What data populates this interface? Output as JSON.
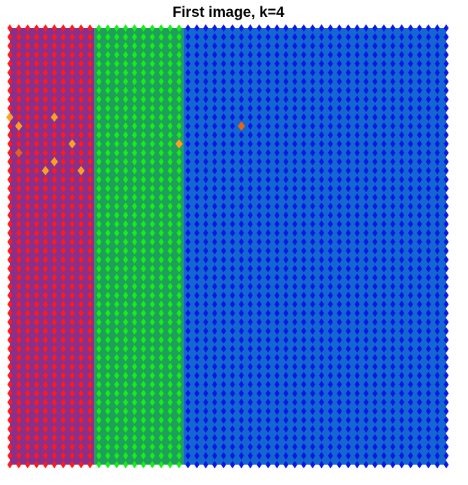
{
  "chart_data": {
    "type": "scatter",
    "title": "First image, k=4",
    "xlabel": "",
    "ylabel": "",
    "grid": false,
    "legend": "none",
    "grid_cols": 50,
    "grid_rows": 50,
    "regions": [
      {
        "cluster": "red",
        "col_start": 0,
        "col_end": 9,
        "background": "#8B2F8A",
        "marker": "#FF1A1A"
      },
      {
        "cluster": "green",
        "col_start": 10,
        "col_end": 19,
        "background": "#1FA05A",
        "marker": "#14F014"
      },
      {
        "cluster": "blue",
        "col_start": 20,
        "col_end": 49,
        "background": "#1466D0",
        "marker": "#0B16E8"
      }
    ],
    "highlights": [
      {
        "col": 0,
        "row": 10,
        "color": "#FFA020"
      },
      {
        "col": 1,
        "row": 11,
        "color": "#FFA020"
      },
      {
        "col": 5,
        "row": 10,
        "color": "#FFA020"
      },
      {
        "col": 7,
        "row": 13,
        "color": "#FFA020"
      },
      {
        "col": 1,
        "row": 14,
        "color": "#E8631A"
      },
      {
        "col": 4,
        "row": 16,
        "color": "#FFA020"
      },
      {
        "col": 5,
        "row": 15,
        "color": "#FFA020"
      },
      {
        "col": 8,
        "row": 16,
        "color": "#FFA020"
      },
      {
        "col": 19,
        "row": 13,
        "color": "#FFA020"
      },
      {
        "col": 26,
        "row": 11,
        "color": "#E8631A"
      }
    ]
  }
}
